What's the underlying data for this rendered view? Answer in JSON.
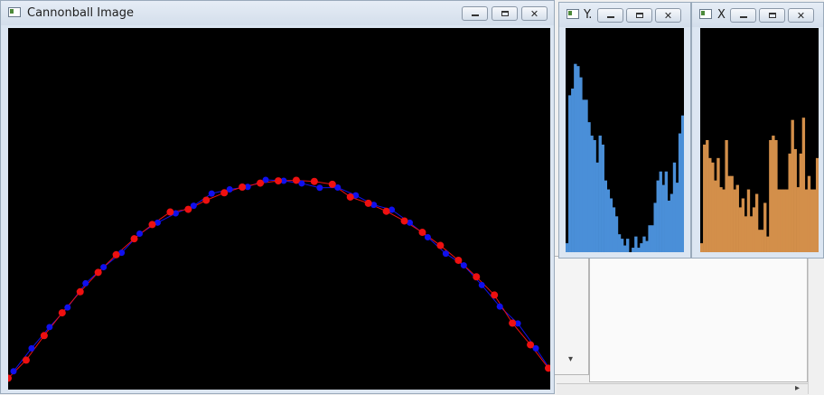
{
  "main_window": {
    "title": "Cannonball Image",
    "buttons": {
      "minimize": "minimize-icon",
      "maximize": "maximize-icon",
      "close": "✕"
    }
  },
  "y_window": {
    "title": "Y.",
    "hist_color": "#4a8fd8",
    "buttons": {
      "minimize": "minimize-icon",
      "maximize": "maximize-icon",
      "close": "✕"
    }
  },
  "x_window": {
    "title": "X",
    "hist_color": "#d38f4a",
    "buttons": {
      "minimize": "minimize-icon",
      "maximize": "maximize-icon",
      "close": "✕"
    }
  },
  "colors": {
    "measured": "#1010ee",
    "estimated": "#ee1010",
    "background": "#000000"
  },
  "scrollbar": {
    "down_arrow": "▾",
    "right_arrow": "▸"
  }
}
